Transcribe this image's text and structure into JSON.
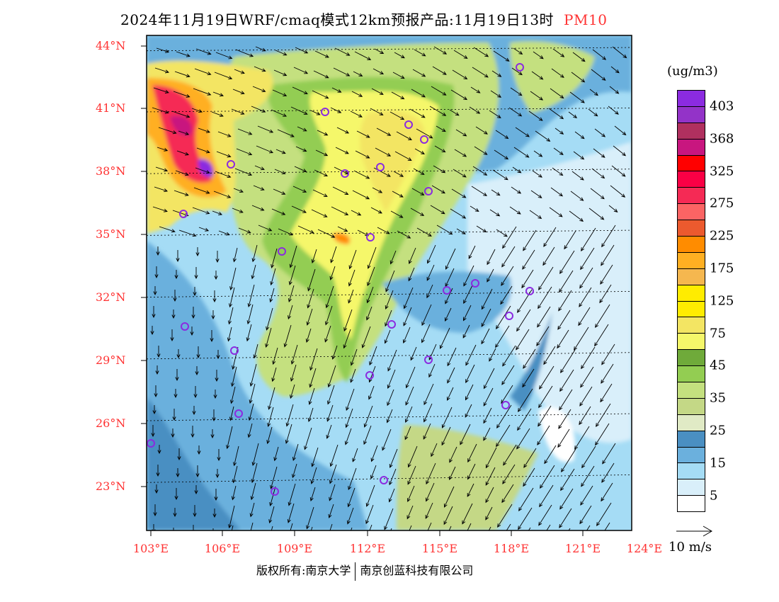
{
  "title": {
    "text": "2024年11月19日WRF/cmaq模式12km预报产品:11月19日13时",
    "pollutant": "PM10"
  },
  "map": {
    "lat_labels": [
      "44°N",
      "41°N",
      "38°N",
      "35°N",
      "32°N",
      "29°N",
      "26°N",
      "23°N"
    ],
    "lon_labels": [
      "103°E",
      "106°E",
      "109°E",
      "112°E",
      "115°E",
      "118°E",
      "121°E",
      "124°E"
    ]
  },
  "legend": {
    "unit": "(ug/m3)",
    "colors": [
      "#8B2BE0",
      "#9333C8",
      "#B0305F",
      "#C8167F",
      "#FF0000",
      "#FA0045",
      "#F52A55",
      "#FB6464",
      "#EC5A2E",
      "#FF8C00",
      "#FFAF22",
      "#F5B74F",
      "#FFEC00",
      "#FFEC00",
      "#F3E563",
      "#F5F76A",
      "#6FAA3A",
      "#93CD52",
      "#C4E07F",
      "#C4D886",
      "#E0EAC5",
      "#4A8FC2",
      "#6BB0DD",
      "#A5DCF5",
      "#D9EFFA",
      "#FFFFFF"
    ],
    "labels": [
      "403",
      "368",
      "325",
      "275",
      "225",
      "175",
      "125",
      "75",
      "45",
      "35",
      "25",
      "15",
      "5"
    ],
    "vector_label": "10 m/s"
  },
  "footer": {
    "left": "版权所有:南京大学",
    "right": "南京创蓝科技有限公司"
  }
}
